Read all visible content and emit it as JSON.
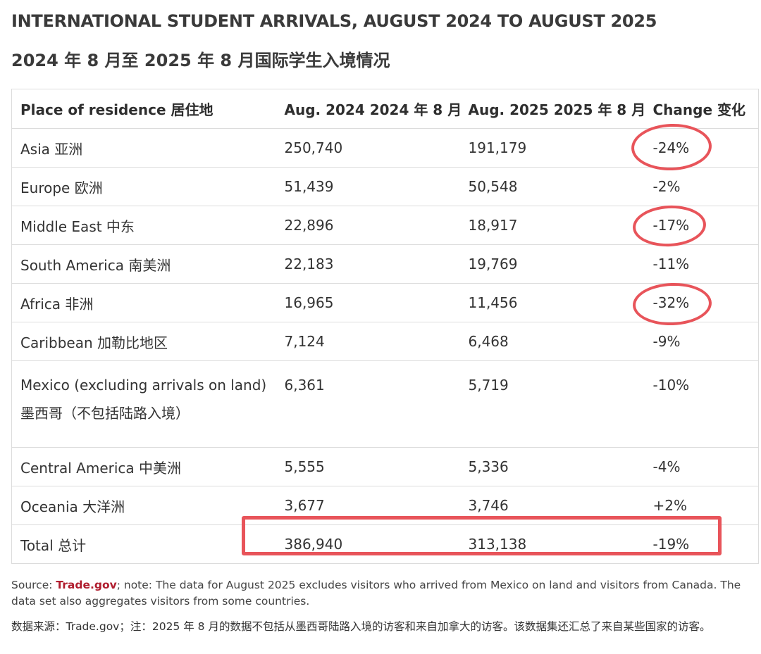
{
  "title": "INTERNATIONAL STUDENT ARRIVALS, AUGUST 2024 TO AUGUST 2025",
  "subtitle": "2024 年 8 月至 2025 年 8 月国际学生入境情况",
  "table": {
    "headers": [
      "Place of residence  居住地",
      "Aug. 2024  2024 年 8 月",
      "Aug. 2025  2025 年 8 月",
      "Change  变化"
    ],
    "rows": [
      {
        "place": "Asia  亚洲",
        "aug2024": "250,740",
        "aug2025": "191,179",
        "change": "-24%"
      },
      {
        "place": "Europe  欧洲",
        "aug2024": "51,439",
        "aug2025": "50,548",
        "change": "-2%"
      },
      {
        "place": "Middle East  中东",
        "aug2024": "22,896",
        "aug2025": "18,917",
        "change": "-17%"
      },
      {
        "place": "South America  南美洲",
        "aug2024": "22,183",
        "aug2025": "19,769",
        "change": "-11%"
      },
      {
        "place": "Africa  非洲",
        "aug2024": "16,965",
        "aug2025": "11,456",
        "change": "-32%"
      },
      {
        "place": "Caribbean  加勒比地区",
        "aug2024": "7,124",
        "aug2025": "6,468",
        "change": "-9%"
      },
      {
        "place": "Mexico (excluding arrivals on land)",
        "place_cn": "墨西哥（不包括陆路入境）",
        "aug2024": "6,361",
        "aug2025": "5,719",
        "change": "-10%"
      },
      {
        "place": "Central America  中美洲",
        "aug2024": "5,555",
        "aug2025": "5,336",
        "change": "-4%"
      },
      {
        "place": "Oceania  大洋洲",
        "aug2024": "3,677",
        "aug2025": "3,746",
        "change": "+2%"
      },
      {
        "place": "Total  总计",
        "aug2024": "386,940",
        "aug2025": "313,138",
        "change": "-19%"
      }
    ]
  },
  "annotation_color": "#e8545a",
  "source": {
    "prefix": "Source: ",
    "link_text": "Trade.gov",
    "note": "; note: The data for August 2025 excludes visitors who arrived from Mexico on land and visitors from Canada. The data set also aggregates visitors from some countries."
  },
  "source_cn": "数据来源：Trade.gov；注：2025 年 8 月的数据不包括从墨西哥陆路入境的访客和来自加拿大的访客。该数据集还汇总了来自某些国家的访客。"
}
